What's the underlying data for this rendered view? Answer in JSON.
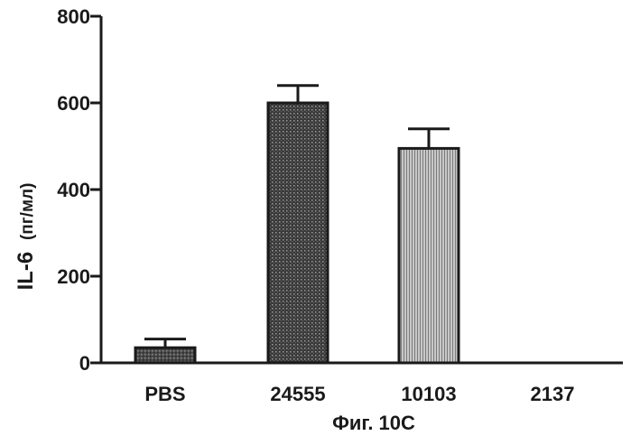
{
  "chart_data": {
    "type": "bar",
    "categories": [
      "PBS",
      "24555",
      "10103",
      "2137"
    ],
    "values": [
      35,
      600,
      495,
      0
    ],
    "errors": [
      20,
      40,
      45,
      0
    ],
    "ylabel": "IL-6",
    "ylabel_unit": "(пг/мл)",
    "xlabel": "",
    "ylim": [
      0,
      800
    ],
    "yticks": [
      0,
      200,
      400,
      600,
      800
    ],
    "grid": false,
    "bar_patterns": [
      "dark-stipple",
      "dark-crosshatch",
      "light-vertical",
      "none"
    ]
  },
  "caption": "Фиг. 10C"
}
